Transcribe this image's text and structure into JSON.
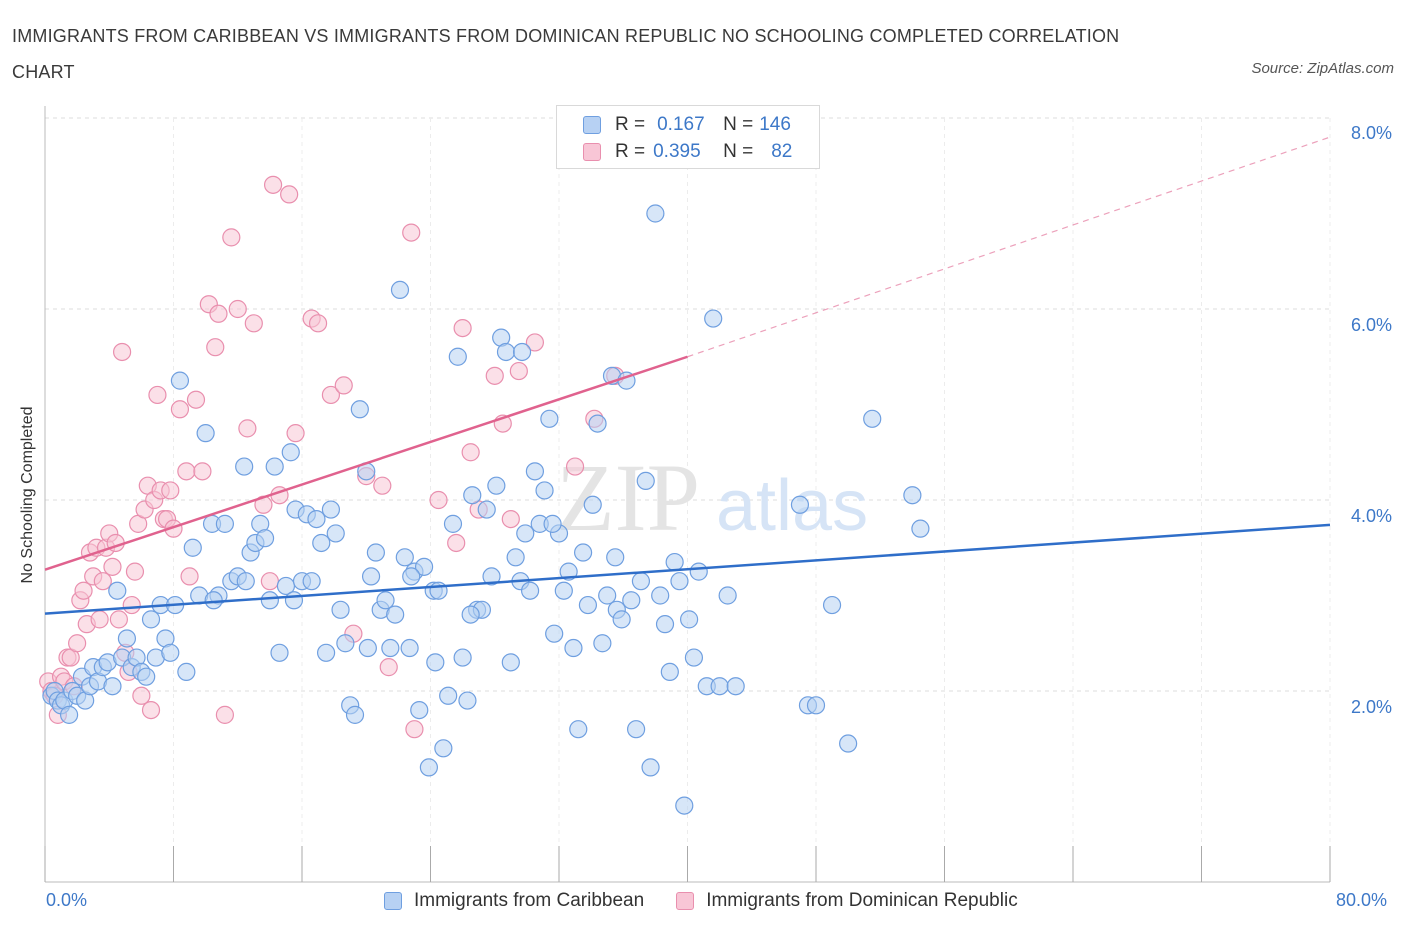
{
  "title": "IMMIGRANTS FROM CARIBBEAN VS IMMIGRANTS FROM DOMINICAN REPUBLIC NO SCHOOLING COMPLETED CORRELATION CHART",
  "source": "Source: ZipAtlas.com",
  "watermark": {
    "zip": "ZIP",
    "atlas": "atlas"
  },
  "legend": {
    "r_label": "R =",
    "n_label": "N =",
    "rows": [
      {
        "r": "0.167",
        "n": "146"
      },
      {
        "r": "0.395",
        "n": "82"
      }
    ]
  },
  "colors": {
    "blue": "#6f9fe0",
    "blue_fill": "#b7d1f3",
    "blue_line": "#2f6ec9",
    "pink": "#e98fae",
    "pink_fill": "#f8c6d6",
    "pink_line": "#e0628e",
    "tick_text": "#3d78c8",
    "grid": "#dcdcdc"
  },
  "chart_data": {
    "type": "scatter",
    "xlabel": "",
    "ylabel": "No Schooling Completed",
    "xlim": [
      0,
      80
    ],
    "ylim": [
      0,
      8
    ],
    "x_tick_labels": [
      "0.0%",
      "80.0%"
    ],
    "y_tick_labels": [
      "2.0%",
      "4.0%",
      "6.0%",
      "8.0%"
    ],
    "y_ticks": [
      2,
      4,
      6,
      8
    ],
    "series": [
      {
        "name": "Immigrants from Caribbean",
        "color": "blue",
        "r": 0.167,
        "n": 146,
        "trend": {
          "x": [
            0,
            80
          ],
          "y": [
            2.81,
            3.74
          ],
          "dashed_extension": false
        },
        "points": [
          [
            0.4,
            1.95
          ],
          [
            0.6,
            2.0
          ],
          [
            0.8,
            1.9
          ],
          [
            1.0,
            1.85
          ],
          [
            1.2,
            1.9
          ],
          [
            1.5,
            1.75
          ],
          [
            1.7,
            2.0
          ],
          [
            2.0,
            1.95
          ],
          [
            2.3,
            2.15
          ],
          [
            2.5,
            1.9
          ],
          [
            2.8,
            2.05
          ],
          [
            3.0,
            2.25
          ],
          [
            3.3,
            2.1
          ],
          [
            3.6,
            2.25
          ],
          [
            3.9,
            2.3
          ],
          [
            4.2,
            2.05
          ],
          [
            4.5,
            3.05
          ],
          [
            4.8,
            2.35
          ],
          [
            5.1,
            2.55
          ],
          [
            5.4,
            2.25
          ],
          [
            5.7,
            2.35
          ],
          [
            6.0,
            2.2
          ],
          [
            6.3,
            2.15
          ],
          [
            6.6,
            2.75
          ],
          [
            6.9,
            2.35
          ],
          [
            7.2,
            2.9
          ],
          [
            7.5,
            2.55
          ],
          [
            7.8,
            2.4
          ],
          [
            8.1,
            2.9
          ],
          [
            8.4,
            5.25
          ],
          [
            8.8,
            2.2
          ],
          [
            9.2,
            3.5
          ],
          [
            9.6,
            3.0
          ],
          [
            10.0,
            4.7
          ],
          [
            10.4,
            3.75
          ],
          [
            10.8,
            3.0
          ],
          [
            11.2,
            3.75
          ],
          [
            11.6,
            3.15
          ],
          [
            12.0,
            3.2
          ],
          [
            12.4,
            4.35
          ],
          [
            12.8,
            3.45
          ],
          [
            13.1,
            3.55
          ],
          [
            13.4,
            3.75
          ],
          [
            13.7,
            3.6
          ],
          [
            14.0,
            2.95
          ],
          [
            14.3,
            4.35
          ],
          [
            14.6,
            2.4
          ],
          [
            15.0,
            3.1
          ],
          [
            15.3,
            4.5
          ],
          [
            15.6,
            3.9
          ],
          [
            16.0,
            3.15
          ],
          [
            16.3,
            3.85
          ],
          [
            16.6,
            3.15
          ],
          [
            16.9,
            3.8
          ],
          [
            17.2,
            3.55
          ],
          [
            17.5,
            2.4
          ],
          [
            17.8,
            3.9
          ],
          [
            18.1,
            3.65
          ],
          [
            18.4,
            2.85
          ],
          [
            18.7,
            2.5
          ],
          [
            19.0,
            1.85
          ],
          [
            19.3,
            1.75
          ],
          [
            19.6,
            4.95
          ],
          [
            20.0,
            4.3
          ],
          [
            20.3,
            3.2
          ],
          [
            20.6,
            3.45
          ],
          [
            20.9,
            2.85
          ],
          [
            21.2,
            2.95
          ],
          [
            21.5,
            2.45
          ],
          [
            21.8,
            2.8
          ],
          [
            22.1,
            6.2
          ],
          [
            22.4,
            3.4
          ],
          [
            22.7,
            2.45
          ],
          [
            23.0,
            3.25
          ],
          [
            23.3,
            1.8
          ],
          [
            23.6,
            3.3
          ],
          [
            23.9,
            1.2
          ],
          [
            24.2,
            3.05
          ],
          [
            24.5,
            3.05
          ],
          [
            24.8,
            1.4
          ],
          [
            25.1,
            1.95
          ],
          [
            25.4,
            3.75
          ],
          [
            25.7,
            5.5
          ],
          [
            26.0,
            2.35
          ],
          [
            26.3,
            1.9
          ],
          [
            26.6,
            4.05
          ],
          [
            26.9,
            2.85
          ],
          [
            27.2,
            2.85
          ],
          [
            27.5,
            3.9
          ],
          [
            27.8,
            3.2
          ],
          [
            28.1,
            4.15
          ],
          [
            28.4,
            5.7
          ],
          [
            28.7,
            5.55
          ],
          [
            29.0,
            2.3
          ],
          [
            29.3,
            3.4
          ],
          [
            29.6,
            3.15
          ],
          [
            29.9,
            3.65
          ],
          [
            30.2,
            3.05
          ],
          [
            30.5,
            4.3
          ],
          [
            30.8,
            3.75
          ],
          [
            31.1,
            4.1
          ],
          [
            31.4,
            4.85
          ],
          [
            31.7,
            2.6
          ],
          [
            32.0,
            3.65
          ],
          [
            32.3,
            3.05
          ],
          [
            32.6,
            3.25
          ],
          [
            32.9,
            2.45
          ],
          [
            33.2,
            1.6
          ],
          [
            33.5,
            3.45
          ],
          [
            33.8,
            2.9
          ],
          [
            34.1,
            3.95
          ],
          [
            34.4,
            4.8
          ],
          [
            34.7,
            2.5
          ],
          [
            35.0,
            3.0
          ],
          [
            35.3,
            5.3
          ],
          [
            35.6,
            2.85
          ],
          [
            35.9,
            2.75
          ],
          [
            36.2,
            5.25
          ],
          [
            36.5,
            2.95
          ],
          [
            36.8,
            1.6
          ],
          [
            37.1,
            3.15
          ],
          [
            37.4,
            4.2
          ],
          [
            37.7,
            1.2
          ],
          [
            38.0,
            7.0
          ],
          [
            38.3,
            3.0
          ],
          [
            38.6,
            2.7
          ],
          [
            38.9,
            2.2
          ],
          [
            39.2,
            3.35
          ],
          [
            39.5,
            3.15
          ],
          [
            39.8,
            0.8
          ],
          [
            40.1,
            2.75
          ],
          [
            40.4,
            2.35
          ],
          [
            40.7,
            3.25
          ],
          [
            41.2,
            2.05
          ],
          [
            41.6,
            5.9
          ],
          [
            42.0,
            2.05
          ],
          [
            42.5,
            3.0
          ],
          [
            43.0,
            2.05
          ],
          [
            47.0,
            3.95
          ],
          [
            47.5,
            1.85
          ],
          [
            48.0,
            1.85
          ],
          [
            49.0,
            2.9
          ],
          [
            50.0,
            1.45
          ],
          [
            51.5,
            4.85
          ],
          [
            54.0,
            4.05
          ],
          [
            54.5,
            3.7
          ],
          [
            29.7,
            5.55
          ],
          [
            12.5,
            3.15
          ],
          [
            26.5,
            2.8
          ],
          [
            10.5,
            2.95
          ],
          [
            35.5,
            3.4
          ],
          [
            15.5,
            2.95
          ],
          [
            20.1,
            2.45
          ],
          [
            24.3,
            2.3
          ],
          [
            31.6,
            3.75
          ],
          [
            22.8,
            3.2
          ]
        ]
      },
      {
        "name": "Immigrants from Dominican Republic",
        "color": "pink",
        "r": 0.395,
        "n": 82,
        "trend": {
          "x": [
            0,
            40
          ],
          "y": [
            3.27,
            5.5
          ],
          "dashed_to": [
            80,
            7.8
          ]
        },
        "points": [
          [
            0.2,
            2.1
          ],
          [
            0.4,
            2.0
          ],
          [
            0.6,
            1.95
          ],
          [
            0.8,
            1.75
          ],
          [
            1.0,
            2.15
          ],
          [
            1.2,
            2.1
          ],
          [
            1.4,
            2.35
          ],
          [
            1.6,
            2.35
          ],
          [
            1.8,
            2.05
          ],
          [
            2.0,
            2.5
          ],
          [
            2.2,
            2.95
          ],
          [
            2.4,
            3.05
          ],
          [
            2.6,
            2.7
          ],
          [
            2.8,
            3.45
          ],
          [
            3.0,
            3.2
          ],
          [
            3.2,
            3.5
          ],
          [
            3.4,
            2.75
          ],
          [
            3.6,
            3.15
          ],
          [
            3.8,
            3.5
          ],
          [
            4.0,
            3.65
          ],
          [
            4.2,
            3.3
          ],
          [
            4.4,
            3.55
          ],
          [
            4.6,
            2.75
          ],
          [
            4.8,
            5.55
          ],
          [
            5.0,
            2.4
          ],
          [
            5.2,
            2.2
          ],
          [
            5.4,
            2.9
          ],
          [
            5.6,
            3.25
          ],
          [
            5.8,
            3.75
          ],
          [
            6.0,
            1.95
          ],
          [
            6.2,
            3.9
          ],
          [
            6.4,
            4.15
          ],
          [
            6.6,
            1.8
          ],
          [
            6.8,
            4.0
          ],
          [
            7.0,
            5.1
          ],
          [
            7.2,
            4.1
          ],
          [
            7.4,
            3.8
          ],
          [
            7.6,
            3.8
          ],
          [
            7.8,
            4.1
          ],
          [
            8.0,
            3.7
          ],
          [
            8.4,
            4.95
          ],
          [
            8.8,
            4.3
          ],
          [
            9.0,
            3.2
          ],
          [
            9.4,
            5.05
          ],
          [
            9.8,
            4.3
          ],
          [
            10.2,
            6.05
          ],
          [
            10.6,
            5.6
          ],
          [
            10.8,
            5.95
          ],
          [
            11.2,
            1.75
          ],
          [
            11.6,
            6.75
          ],
          [
            12.0,
            6.0
          ],
          [
            12.6,
            4.75
          ],
          [
            13.0,
            5.85
          ],
          [
            13.6,
            3.95
          ],
          [
            14.0,
            3.15
          ],
          [
            14.6,
            4.05
          ],
          [
            14.2,
            7.3
          ],
          [
            15.2,
            7.2
          ],
          [
            15.6,
            4.7
          ],
          [
            16.6,
            5.9
          ],
          [
            17.0,
            5.85
          ],
          [
            17.8,
            5.1
          ],
          [
            18.6,
            5.2
          ],
          [
            19.2,
            2.6
          ],
          [
            20.0,
            4.25
          ],
          [
            21.0,
            4.15
          ],
          [
            21.4,
            2.25
          ],
          [
            22.8,
            6.8
          ],
          [
            23.0,
            1.6
          ],
          [
            24.5,
            4.0
          ],
          [
            25.6,
            3.55
          ],
          [
            26.0,
            5.8
          ],
          [
            26.5,
            4.5
          ],
          [
            27.0,
            3.9
          ],
          [
            28.0,
            5.3
          ],
          [
            28.5,
            4.8
          ],
          [
            29.0,
            3.8
          ],
          [
            29.5,
            5.35
          ],
          [
            30.5,
            5.65
          ],
          [
            33.0,
            4.35
          ],
          [
            34.2,
            4.85
          ],
          [
            35.5,
            5.3
          ]
        ]
      }
    ]
  }
}
